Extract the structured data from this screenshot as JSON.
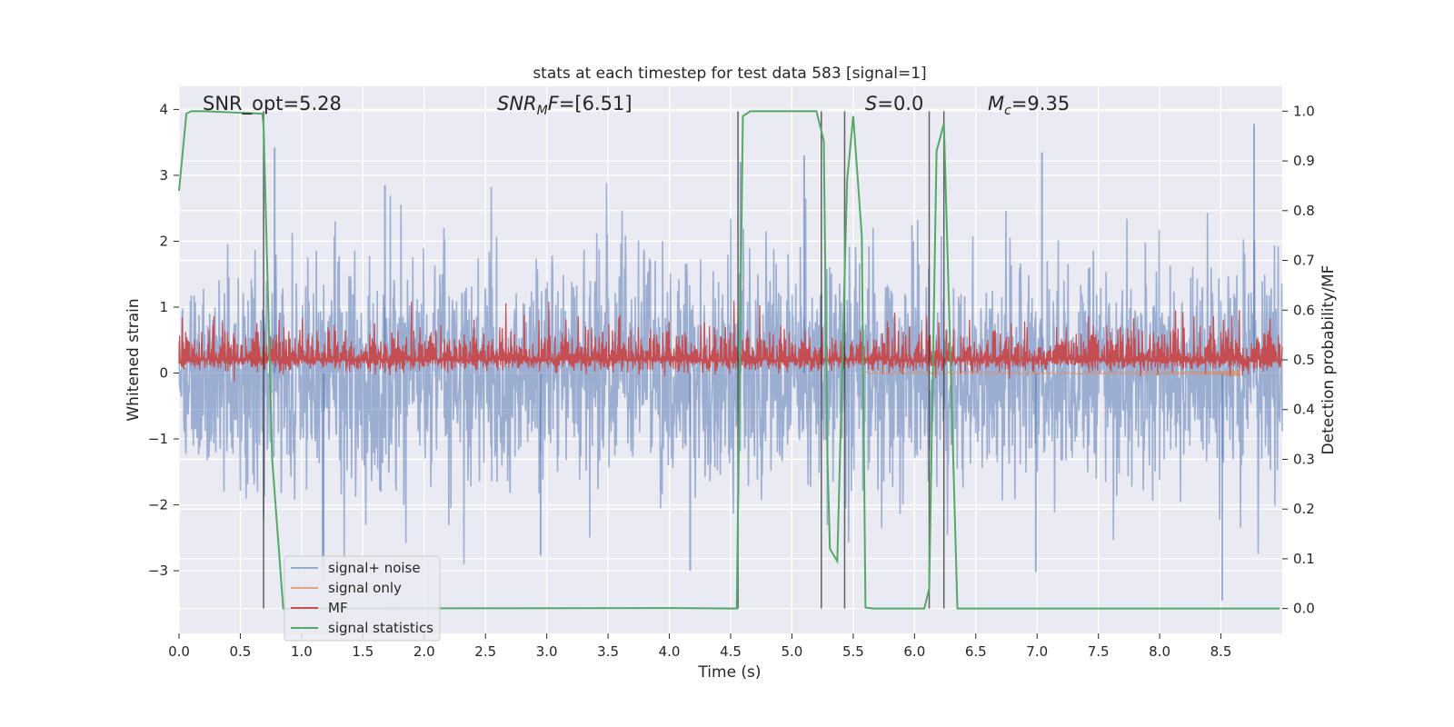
{
  "chart_data": {
    "type": "line",
    "title": "stats at each timestep for test data 583 [signal=1]",
    "xlabel": "Time (s)",
    "ylabel_left": "Whitened strain",
    "ylabel_right": "Detection probability/MF",
    "xlim": [
      0.0,
      9.0
    ],
    "ylim_left": [
      -3.95,
      4.35
    ],
    "ylim_right": [
      -0.05,
      1.05
    ],
    "xticks": [
      0.0,
      0.5,
      1.0,
      1.5,
      2.0,
      2.5,
      3.0,
      3.5,
      4.0,
      4.5,
      5.0,
      5.5,
      6.0,
      6.5,
      7.0,
      7.5,
      8.0,
      8.5
    ],
    "xtick_labels": [
      "0.0",
      "0.5",
      "1.0",
      "1.5",
      "2.0",
      "2.5",
      "3.0",
      "3.5",
      "4.0",
      "4.5",
      "5.0",
      "5.5",
      "6.0",
      "6.5",
      "7.0",
      "7.5",
      "8.0",
      "8.5"
    ],
    "yticks_left": [
      -3,
      -2,
      -1,
      0,
      1,
      2,
      3,
      4
    ],
    "ytick_labels_left": [
      "−3",
      "−2",
      "−1",
      "0",
      "1",
      "2",
      "3",
      "4"
    ],
    "yticks_right": [
      0.0,
      0.1,
      0.2,
      0.3,
      0.4,
      0.5,
      0.6,
      0.7,
      0.8,
      0.9,
      1.0
    ],
    "ytick_labels_right": [
      "0.0",
      "0.1",
      "0.2",
      "0.3",
      "0.4",
      "0.5",
      "0.6",
      "0.7",
      "0.8",
      "0.9",
      "1.0"
    ],
    "grid": true,
    "legend_position": "lower-left",
    "annotations": {
      "snr_opt": "SNR_opt=5.28",
      "snr_mf_base": "SNR",
      "snr_mf_sub": "M",
      "snr_mf_rest": "F=[6.51]",
      "s_var": "S",
      "s_rest": "=0.0",
      "mc_base": "M",
      "mc_sub": "c",
      "mc_rest": "=9.35"
    },
    "series": [
      {
        "name": "signal+ noise",
        "color": "#4c72b0",
        "axis": "left",
        "kind": "noise",
        "sigma": 0.85,
        "extreme_high": [
          [
            8.77,
            3.78
          ],
          [
            7.04,
            3.35
          ],
          [
            5.1,
            3.3
          ],
          [
            4.58,
            3.2
          ],
          [
            1.68,
            2.85
          ],
          [
            0.78,
            3.42
          ]
        ],
        "extreme_low": [
          [
            8.51,
            -3.45
          ],
          [
            4.17,
            -3.0
          ],
          [
            1.18,
            -3.15
          ],
          [
            6.99,
            -3.02
          ],
          [
            2.95,
            -2.77
          ]
        ]
      },
      {
        "name": "signal only",
        "color": "#dd8452",
        "axis": "left",
        "kind": "chirp",
        "start": 5.6,
        "end": 8.65,
        "amplitude_end": 0.8
      },
      {
        "name": "MF",
        "color": "#c44e52",
        "axis": "right",
        "kind": "mf",
        "baseline": 0.5,
        "spread": 0.035,
        "peak": [
          8.65,
          0.6
        ]
      },
      {
        "name": "signal statistics",
        "color": "#55a868",
        "axis": "right",
        "kind": "line",
        "x": [
          0.0,
          0.06,
          0.1,
          0.2,
          0.68,
          0.69,
          0.76,
          0.85,
          3.97,
          4.55,
          4.6,
          4.66,
          5.2,
          5.26,
          5.29,
          5.31,
          5.37,
          5.45,
          5.5,
          5.57,
          5.6,
          5.66,
          6.08,
          6.12,
          6.18,
          6.24,
          6.28,
          6.35,
          8.98
        ],
        "y": [
          0.84,
          0.995,
          1.0,
          1.0,
          0.995,
          0.97,
          0.3,
          0.0,
          0.001,
          0.0,
          0.99,
          1.0,
          1.0,
          0.94,
          0.3,
          0.12,
          0.095,
          0.86,
          0.99,
          0.75,
          0.002,
          0.0,
          0.0,
          0.04,
          0.92,
          0.975,
          0.62,
          0.0,
          0.0
        ]
      }
    ],
    "vertical_lines": [
      0.69,
      4.56,
      5.24,
      5.43,
      6.12,
      6.24
    ]
  }
}
